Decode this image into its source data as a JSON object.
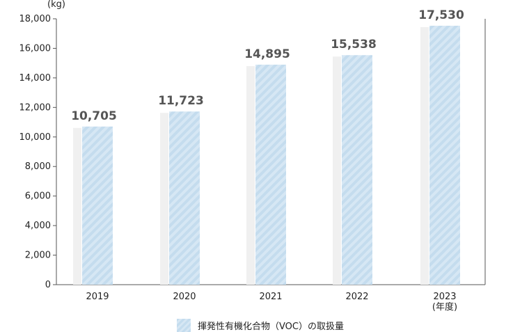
{
  "chart_data": {
    "type": "bar",
    "unit_label": "(kg)",
    "categories": [
      "2019",
      "2020",
      "2021",
      "2022",
      "2023"
    ],
    "last_category_suffix": "(年度)",
    "series": [
      {
        "name": "揮発性有機化合物（VOC）の取扱量",
        "values": [
          10705,
          11723,
          14895,
          15538,
          17530
        ]
      }
    ],
    "value_labels": [
      "10,705",
      "11,723",
      "14,895",
      "15,538",
      "17,530"
    ],
    "ylim": [
      0,
      18000
    ],
    "yticks": [
      0,
      2000,
      4000,
      6000,
      8000,
      10000,
      12000,
      14000,
      16000,
      18000
    ],
    "ytick_labels": [
      "0",
      "2,000",
      "4,000",
      "6,000",
      "8,000",
      "10,000",
      "12,000",
      "14,000",
      "16,000",
      "18,000"
    ],
    "grid": false,
    "legend_position": "bottom-center",
    "colors": {
      "bar": "#c4dcee",
      "bar_stripe": "#d6e7f4",
      "shadow": "#f0f0f0",
      "axis": "#555555",
      "label": "#555555"
    }
  },
  "legend": {
    "label": "揮発性有機化合物（VOC）の取扱量"
  }
}
